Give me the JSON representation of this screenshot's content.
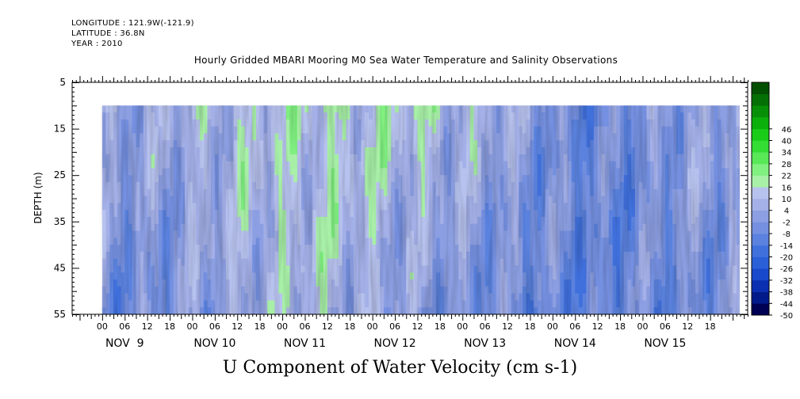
{
  "header": {
    "longitude": "LONGITUDE : 121.9W(-121.9)",
    "latitude": "LATITUDE : 36.8N",
    "year": "YEAR : 2010"
  },
  "chart_data": {
    "type": "heatmap",
    "title": "Hourly Gridded MBARI Mooring M0 Sea Water Temperature and Salinity Observations",
    "ylabel": "DEPTH (m)",
    "xlabel": "U Component of Water Velocity (cm s-1)",
    "y_ticks": [
      "5",
      "15",
      "25",
      "35",
      "45",
      "55"
    ],
    "ylim": [
      5,
      55
    ],
    "y_reversed": true,
    "data_depth_range": [
      10,
      55
    ],
    "x_hour_labels": [
      "00",
      "06",
      "12",
      "18",
      "00",
      "06",
      "12",
      "18",
      "00",
      "06",
      "12",
      "18",
      "00",
      "06",
      "12",
      "18",
      "00",
      "06",
      "12",
      "18",
      "00",
      "06",
      "12",
      "18",
      "00",
      "06",
      "12",
      "18"
    ],
    "x_day_labels": [
      "NOV  9",
      "NOV 10",
      "NOV 11",
      "NOV 12",
      "NOV 13",
      "NOV 14",
      "NOV 15"
    ],
    "time_range_hours": [
      -8,
      172
    ],
    "data_start_hour": 0,
    "colorbar_labels": [
      "46",
      "40",
      "34",
      "28",
      "22",
      "16",
      "10",
      "4",
      "-2",
      "-8",
      "-14",
      "-20",
      "-26",
      "-32",
      "-38",
      "-44",
      "-50"
    ],
    "colorbar_range": [
      -50,
      52
    ],
    "colorbar_step": 6,
    "colorbar_colors": [
      "#000055",
      "#001a8a",
      "#0a2fb0",
      "#1848cc",
      "#2a5fd8",
      "#4070dc",
      "#5a82de",
      "#7590e0",
      "#8c9fe2",
      "#a4b0e8",
      "#b7c2ee",
      "#a8f0a8",
      "#80f080",
      "#58e858",
      "#34dd34",
      "#18cc18",
      "#0bb00b",
      "#079007",
      "#057005",
      "#035003"
    ],
    "u_by_day_approx": [
      {
        "day": "NOV  9",
        "upper": 5,
        "lower": -5
      },
      {
        "day": "NOV 10",
        "upper": 12,
        "lower": 6
      },
      {
        "day": "NOV 11",
        "upper": 15,
        "lower": 10
      },
      {
        "day": "NOV 12",
        "upper": 14,
        "lower": 0
      },
      {
        "day": "NOV 13",
        "upper": 5,
        "lower": -6
      },
      {
        "day": "NOV 14",
        "upper": -8,
        "lower": -8
      },
      {
        "day": "NOV 15",
        "upper": 4,
        "lower": -4
      }
    ]
  }
}
